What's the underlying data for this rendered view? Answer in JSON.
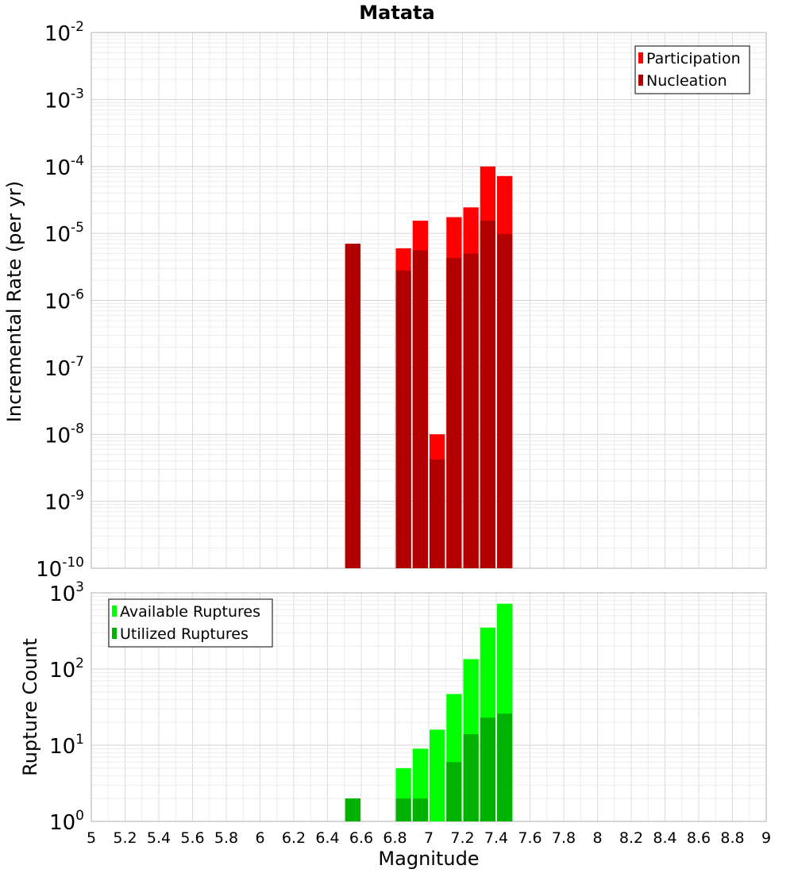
{
  "title": "Matata",
  "x_axis_label": "Magnitude",
  "chart_data": [
    {
      "type": "bar",
      "name": "rate-panel",
      "ylabel": "Incremental Rate (per yr)",
      "yscale": "log",
      "ylim_exponents": [
        -10,
        -2
      ],
      "xlim": [
        5,
        9
      ],
      "grid": true,
      "legend_position": "top-right",
      "legend": [
        "Participation",
        "Nucleation"
      ],
      "bin_width": 0.1,
      "series": [
        {
          "name": "Participation",
          "color": "#ff0000",
          "x": [
            6.55,
            6.85,
            6.95,
            7.05,
            7.15,
            7.25,
            7.35,
            7.45
          ],
          "values": [
            7e-06,
            6e-06,
            1.55e-05,
            1e-08,
            1.75e-05,
            2.45e-05,
            0.0001,
            7.2e-05
          ]
        },
        {
          "name": "Nucleation",
          "color": "#b20000",
          "x": [
            6.55,
            6.85,
            6.95,
            7.05,
            7.15,
            7.25,
            7.35,
            7.45
          ],
          "values": [
            7e-06,
            2.8e-06,
            5.6e-06,
            4.2e-09,
            4.3e-06,
            5e-06,
            1.55e-05,
            9.8e-06
          ]
        }
      ]
    },
    {
      "type": "bar",
      "name": "count-panel",
      "ylabel": "Rupture Count",
      "yscale": "log",
      "ylim_exponents": [
        0,
        3
      ],
      "xlim": [
        5,
        9
      ],
      "grid": true,
      "legend_position": "top-left",
      "legend": [
        "Available Ruptures",
        "Utilized Ruptures"
      ],
      "bin_width": 0.1,
      "series": [
        {
          "name": "Available Ruptures",
          "color": "#00ff00",
          "x": [
            6.55,
            6.75,
            6.85,
            6.95,
            7.05,
            7.15,
            7.25,
            7.35,
            7.45
          ],
          "values": [
            2,
            1,
            5,
            9,
            16,
            47,
            135,
            350,
            720
          ]
        },
        {
          "name": "Utilized Ruptures",
          "color": "#00b200",
          "x": [
            6.55,
            6.75,
            6.85,
            6.95,
            7.05,
            7.15,
            7.25,
            7.35,
            7.45
          ],
          "values": [
            2,
            0,
            2,
            2,
            1,
            6,
            14,
            23,
            26
          ]
        }
      ]
    }
  ],
  "x_ticks": [
    "5",
    "5.2",
    "5.4",
    "5.6",
    "5.8",
    "6",
    "6.2",
    "6.4",
    "6.6",
    "6.8",
    "7",
    "7.2",
    "7.4",
    "7.6",
    "7.8",
    "8",
    "8.2",
    "8.4",
    "8.6",
    "8.8",
    "9"
  ]
}
